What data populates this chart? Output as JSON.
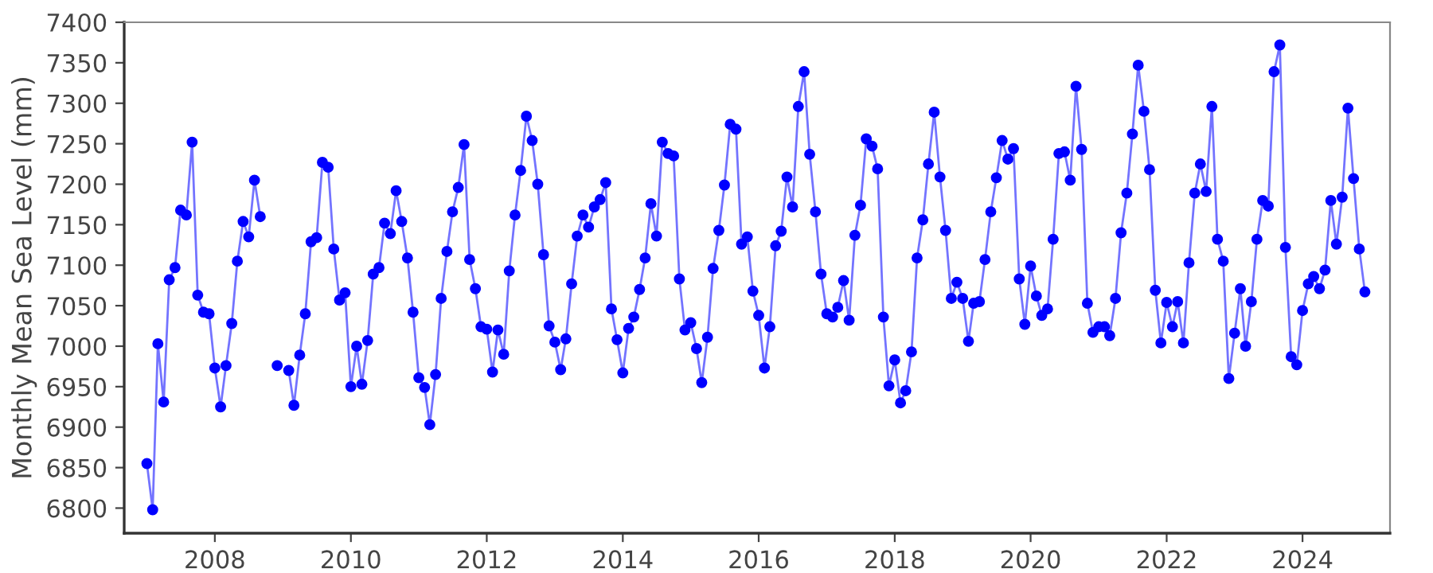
{
  "chart_data": {
    "type": "line",
    "ylabel": "Monthly Mean Sea Level (mm)",
    "x": [
      "2007-01",
      "2007-02",
      "2007-03",
      "2007-04",
      "2007-05",
      "2007-06",
      "2007-07",
      "2007-08",
      "2007-09",
      "2007-10",
      "2007-11",
      "2007-12",
      "2008-01",
      "2008-02",
      "2008-03",
      "2008-04",
      "2008-05",
      "2008-06",
      "2008-07",
      "2008-08",
      "2008-09",
      "2008-10",
      "2008-11",
      "2008-12",
      "2009-01",
      "2009-02",
      "2009-03",
      "2009-04",
      "2009-05",
      "2009-06",
      "2009-07",
      "2009-08",
      "2009-09",
      "2009-10",
      "2009-11",
      "2009-12",
      "2010-01",
      "2010-02",
      "2010-03",
      "2010-04",
      "2010-05",
      "2010-06",
      "2010-07",
      "2010-08",
      "2010-09",
      "2010-10",
      "2010-11",
      "2010-12",
      "2011-01",
      "2011-02",
      "2011-03",
      "2011-04",
      "2011-05",
      "2011-06",
      "2011-07",
      "2011-08",
      "2011-09",
      "2011-10",
      "2011-11",
      "2011-12",
      "2012-01",
      "2012-02",
      "2012-03",
      "2012-04",
      "2012-05",
      "2012-06",
      "2012-07",
      "2012-08",
      "2012-09",
      "2012-10",
      "2012-11",
      "2012-12",
      "2013-01",
      "2013-02",
      "2013-03",
      "2013-04",
      "2013-05",
      "2013-06",
      "2013-07",
      "2013-08",
      "2013-09",
      "2013-10",
      "2013-11",
      "2013-12",
      "2014-01",
      "2014-02",
      "2014-03",
      "2014-04",
      "2014-05",
      "2014-06",
      "2014-07",
      "2014-08",
      "2014-09",
      "2014-10",
      "2014-11",
      "2014-12",
      "2015-01",
      "2015-02",
      "2015-03",
      "2015-04",
      "2015-05",
      "2015-06",
      "2015-07",
      "2015-08",
      "2015-09",
      "2015-10",
      "2015-11",
      "2015-12",
      "2016-01",
      "2016-02",
      "2016-03",
      "2016-04",
      "2016-05",
      "2016-06",
      "2016-07",
      "2016-08",
      "2016-09",
      "2016-10",
      "2016-11",
      "2016-12",
      "2017-01",
      "2017-02",
      "2017-03",
      "2017-04",
      "2017-05",
      "2017-06",
      "2017-07",
      "2017-08",
      "2017-09",
      "2017-10",
      "2017-11",
      "2017-12",
      "2018-01",
      "2018-02",
      "2018-03",
      "2018-04",
      "2018-05",
      "2018-06",
      "2018-07",
      "2018-08",
      "2018-09",
      "2018-10",
      "2018-11",
      "2018-12",
      "2019-01",
      "2019-02",
      "2019-03",
      "2019-04",
      "2019-05",
      "2019-06",
      "2019-07",
      "2019-08",
      "2019-09",
      "2019-10",
      "2019-11",
      "2019-12",
      "2020-01",
      "2020-02",
      "2020-03",
      "2020-04",
      "2020-05",
      "2020-06",
      "2020-07",
      "2020-08",
      "2020-09",
      "2020-10",
      "2020-11",
      "2020-12",
      "2021-01",
      "2021-02",
      "2021-03",
      "2021-04",
      "2021-05",
      "2021-06",
      "2021-07",
      "2021-08",
      "2021-09",
      "2021-10",
      "2021-11",
      "2021-12",
      "2022-01",
      "2022-02",
      "2022-03",
      "2022-04",
      "2022-05",
      "2022-06",
      "2022-07",
      "2022-08",
      "2022-09",
      "2022-10",
      "2022-11",
      "2022-12",
      "2023-01",
      "2023-02",
      "2023-03",
      "2023-04",
      "2023-05",
      "2023-06",
      "2023-07",
      "2023-08",
      "2023-09",
      "2023-10",
      "2023-11",
      "2023-12",
      "2024-01",
      "2024-02",
      "2024-03",
      "2024-04",
      "2024-05",
      "2024-06",
      "2024-07",
      "2024-08",
      "2024-09",
      "2024-10",
      "2024-11",
      "2024-12"
    ],
    "series": [
      {
        "color": "#0000ff",
        "values": [
          6855,
          6798,
          7003,
          6931,
          7082,
          7097,
          7168,
          7162,
          7252,
          7063,
          7042,
          7040,
          6973,
          6925,
          6976,
          7028,
          7105,
          7154,
          7135,
          7205,
          7160,
          null,
          null,
          6976,
          null,
          6970,
          6927,
          6989,
          7040,
          7129,
          7134,
          7227,
          7221,
          7120,
          7057,
          7066,
          6950,
          7000,
          6953,
          7007,
          7089,
          7097,
          7152,
          7139,
          7192,
          7154,
          7109,
          7042,
          6961,
          6949,
          6903,
          6965,
          7059,
          7117,
          7166,
          7196,
          7249,
          7107,
          7071,
          7024,
          7021,
          6968,
          7020,
          6990,
          7093,
          7162,
          7217,
          7284,
          7254,
          7200,
          7113,
          7025,
          7005,
          6971,
          7009,
          7077,
          7136,
          7162,
          7147,
          7172,
          7181,
          7202,
          7046,
          7008,
          6967,
          7022,
          7036,
          7070,
          7109,
          7176,
          7136,
          7252,
          7238,
          7235,
          7083,
          7020,
          7029,
          6997,
          6955,
          7011,
          7096,
          7143,
          7199,
          7274,
          7268,
          7126,
          7135,
          7068,
          7038,
          6973,
          7024,
          7124,
          7142,
          7209,
          7172,
          7296,
          7339,
          7237,
          7166,
          7089,
          7040,
          7036,
          7048,
          7081,
          7032,
          7137,
          7174,
          7256,
          7247,
          7219,
          7036,
          6951,
          6983,
          6930,
          6945,
          6993,
          7109,
          7156,
          7225,
          7289,
          7209,
          7143,
          7059,
          7079,
          7059,
          7006,
          7053,
          7055,
          7107,
          7166,
          7208,
          7254,
          7231,
          7244,
          7083,
          7027,
          7099,
          7062,
          7038,
          7046,
          7132,
          7238,
          7240,
          7205,
          7321,
          7243,
          7053,
          7017,
          7024,
          7024,
          7013,
          7059,
          7140,
          7189,
          7262,
          7347,
          7290,
          7218,
          7069,
          7004,
          7054,
          7024,
          7055,
          7004,
          7103,
          7189,
          7225,
          7191,
          7296,
          7132,
          7105,
          6960,
          7016,
          7071,
          7000,
          7055,
          7132,
          7180,
          7173,
          7339,
          7372,
          7122,
          6987,
          6977,
          7044,
          7077,
          7086,
          7071,
          7094,
          7180,
          7126,
          7184,
          7294,
          7207,
          7120,
          7067
        ]
      }
    ],
    "xlim": [
      "2006-09-01",
      "2025-04-15"
    ],
    "xticks": [
      {
        "value": "2008-01-01",
        "label": "2008"
      },
      {
        "value": "2010-01-01",
        "label": "2010"
      },
      {
        "value": "2012-01-01",
        "label": "2012"
      },
      {
        "value": "2014-01-01",
        "label": "2014"
      },
      {
        "value": "2016-01-01",
        "label": "2016"
      },
      {
        "value": "2018-01-01",
        "label": "2018"
      },
      {
        "value": "2020-01-01",
        "label": "2020"
      },
      {
        "value": "2022-01-01",
        "label": "2022"
      },
      {
        "value": "2024-01-01",
        "label": "2024"
      }
    ],
    "ylim": [
      6769,
      7400
    ],
    "yticks": [
      6800,
      6850,
      6900,
      6950,
      7000,
      7050,
      7100,
      7150,
      7200,
      7250,
      7300,
      7350,
      7400
    ],
    "grid": false,
    "marker": "circle",
    "line_style": "solid"
  }
}
